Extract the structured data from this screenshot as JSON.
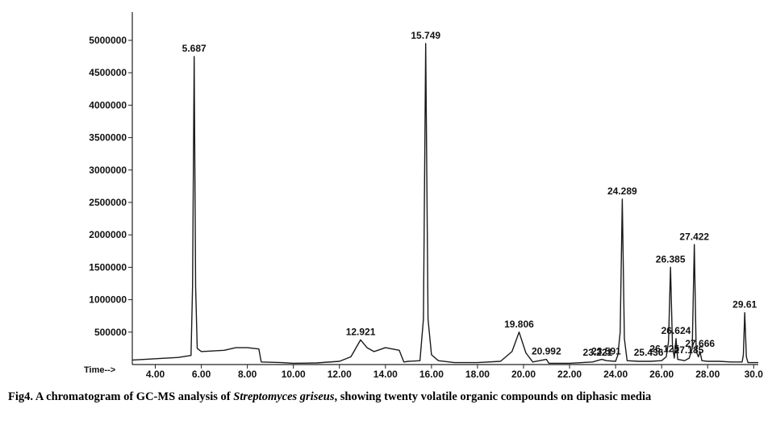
{
  "caption": {
    "lead": "Fig4. A chromatogram of GC-MS analysis of ",
    "species": "Streptomyces griseus",
    "tail": ", showing twenty volatile organic compounds on diphasic media"
  },
  "chart_data": {
    "type": "line",
    "xlabel": "Time-->",
    "ylabel": "",
    "xlim": [
      3.0,
      30.2
    ],
    "ylim": [
      0,
      5000000
    ],
    "grid": false,
    "y_ticks": [
      500000,
      1000000,
      1500000,
      2000000,
      2500000,
      3000000,
      3500000,
      4000000,
      4500000,
      5000000
    ],
    "y_tick_labels": [
      "500000",
      "1000000",
      "1500000",
      "2000000",
      "2500000",
      "3000000",
      "3500000",
      "4000000",
      "4500000",
      "5000000"
    ],
    "x_ticks": [
      4,
      6,
      8,
      10,
      12,
      14,
      16,
      18,
      20,
      22,
      24,
      26,
      28,
      30
    ],
    "x_tick_labels": [
      "4.00",
      "6.00",
      "8.00",
      "10.00",
      "12.00",
      "14.00",
      "16.00",
      "18.00",
      "20.00",
      "22.00",
      "24.00",
      "26.00",
      "28.00",
      "30.0"
    ],
    "color": "#1a1a1a",
    "series": [
      {
        "x": [
          3.0,
          4.0,
          5.0,
          5.55,
          5.62,
          5.687,
          5.75,
          5.82,
          6.0,
          7.0,
          7.5,
          8.0,
          8.5,
          8.6,
          9.5,
          10.0,
          11.0,
          12.0,
          12.5,
          12.921,
          13.2,
          13.5,
          14.0,
          14.6,
          14.8,
          15.0,
          15.5,
          15.65,
          15.749,
          15.85,
          16.0,
          16.3,
          17.0,
          18.0,
          19.0,
          19.5,
          19.806,
          20.1,
          20.4,
          20.992,
          21.1,
          22.0,
          23.0,
          23.4,
          23.6,
          24.0,
          24.1,
          24.2,
          24.289,
          24.38,
          24.5,
          25.0,
          25.5,
          26.0,
          26.2,
          26.3,
          26.385,
          26.47,
          26.55,
          26.624,
          26.7,
          27.0,
          27.2,
          27.33,
          27.422,
          27.5,
          27.6,
          27.666,
          27.75,
          28.0,
          28.5,
          29.0,
          29.5,
          29.55,
          29.61,
          29.68,
          29.75,
          30.2
        ],
        "y": [
          70000,
          90000,
          110000,
          140000,
          1200000,
          4750000,
          1200000,
          250000,
          200000,
          220000,
          260000,
          260000,
          240000,
          40000,
          30000,
          20000,
          25000,
          50000,
          120000,
          380000,
          260000,
          200000,
          260000,
          220000,
          40000,
          50000,
          60000,
          700000,
          4950000,
          700000,
          150000,
          60000,
          30000,
          30000,
          50000,
          200000,
          500000,
          180000,
          40000,
          80000,
          20000,
          20000,
          40000,
          80000,
          60000,
          50000,
          150000,
          500000,
          2550000,
          400000,
          60000,
          50000,
          50000,
          60000,
          120000,
          350000,
          1500000,
          300000,
          100000,
          400000,
          80000,
          60000,
          100000,
          250000,
          1850000,
          200000,
          120000,
          200000,
          60000,
          50000,
          50000,
          40000,
          40000,
          150000,
          800000,
          120000,
          30000,
          30000
        ]
      }
    ],
    "peak_labels": [
      {
        "rt": "5.687",
        "x": 5.687,
        "y": 4750000
      },
      {
        "rt": "12.921",
        "x": 12.921,
        "y": 380000
      },
      {
        "rt": "15.749",
        "x": 15.749,
        "y": 4950000
      },
      {
        "rt": "19.806",
        "x": 19.806,
        "y": 500000
      },
      {
        "rt": "20.992",
        "x": 20.992,
        "y": 80000
      },
      {
        "rt": "23.221",
        "x": 23.221,
        "y": 60000
      },
      {
        "rt": "23.591",
        "x": 23.591,
        "y": 80000
      },
      {
        "rt": "24.289",
        "x": 24.289,
        "y": 2550000
      },
      {
        "rt": "25.436",
        "x": 25.436,
        "y": 60000
      },
      {
        "rt": "26.125",
        "x": 26.125,
        "y": 120000
      },
      {
        "rt": "26.385",
        "x": 26.385,
        "y": 1500000
      },
      {
        "rt": "26.624",
        "x": 26.624,
        "y": 400000
      },
      {
        "rt": "27.185",
        "x": 27.185,
        "y": 100000
      },
      {
        "rt": "27.422",
        "x": 27.422,
        "y": 1850000
      },
      {
        "rt": "27.666",
        "x": 27.666,
        "y": 200000
      },
      {
        "rt": "29.61",
        "x": 29.61,
        "y": 800000
      }
    ]
  }
}
